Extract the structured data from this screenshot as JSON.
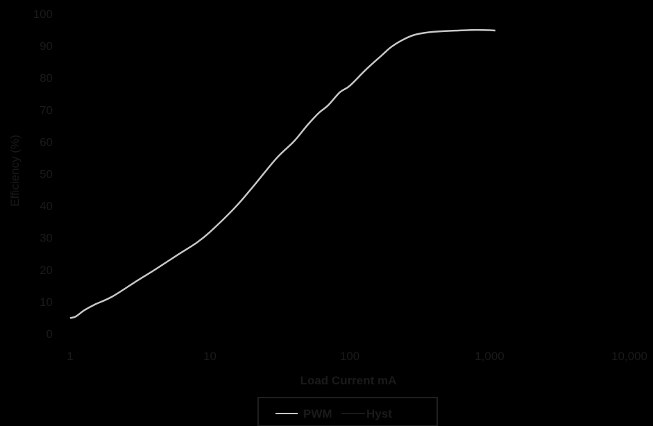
{
  "chart_data": {
    "type": "line",
    "title": "",
    "xlabel": "Load Current mA",
    "ylabel": "Efficiency (%)",
    "x_scale": "log",
    "xlim": [
      1,
      10000
    ],
    "ylim": [
      0,
      100
    ],
    "x_ticks": [
      1,
      10,
      100,
      1000,
      10000
    ],
    "x_tick_labels": [
      "1",
      "10",
      "100",
      "1,000",
      "10,000"
    ],
    "y_ticks": [
      0,
      10,
      20,
      30,
      40,
      50,
      60,
      70,
      80,
      90,
      100
    ],
    "y_tick_labels": [
      "0",
      "10",
      "20",
      "30",
      "40",
      "50",
      "60",
      "70",
      "80",
      "90",
      "100"
    ],
    "grid": false,
    "legend_position": "bottom",
    "series": [
      {
        "name": "PWM",
        "color": "#c8c8c8",
        "points": [
          [
            1,
            4.9
          ],
          [
            1.1,
            5.4
          ],
          [
            1.26,
            7.3
          ],
          [
            1.5,
            9.1
          ],
          [
            2,
            11.6
          ],
          [
            3,
            16.5
          ],
          [
            4,
            19.9
          ],
          [
            6,
            24.9
          ],
          [
            8,
            28.4
          ],
          [
            10,
            31.8
          ],
          [
            15,
            39.3
          ],
          [
            20,
            45.6
          ],
          [
            30,
            54.9
          ],
          [
            40,
            60.2
          ],
          [
            50,
            65.3
          ],
          [
            60,
            69.0
          ],
          [
            70,
            71.4
          ],
          [
            85,
            75.5
          ],
          [
            100,
            77.5
          ],
          [
            130,
            82.5
          ],
          [
            170,
            87.1
          ],
          [
            200,
            89.8
          ],
          [
            250,
            92.3
          ],
          [
            300,
            93.6
          ],
          [
            400,
            94.4
          ],
          [
            600,
            94.8
          ],
          [
            800,
            95.0
          ],
          [
            1000,
            94.9
          ],
          [
            1100,
            94.8
          ]
        ]
      },
      {
        "name": "Hyst",
        "color": "#1a1a1a",
        "points": []
      }
    ],
    "colors": {
      "background": "#000000",
      "text": "#1a1a1a",
      "legend_border": "#1f1f1f"
    }
  }
}
